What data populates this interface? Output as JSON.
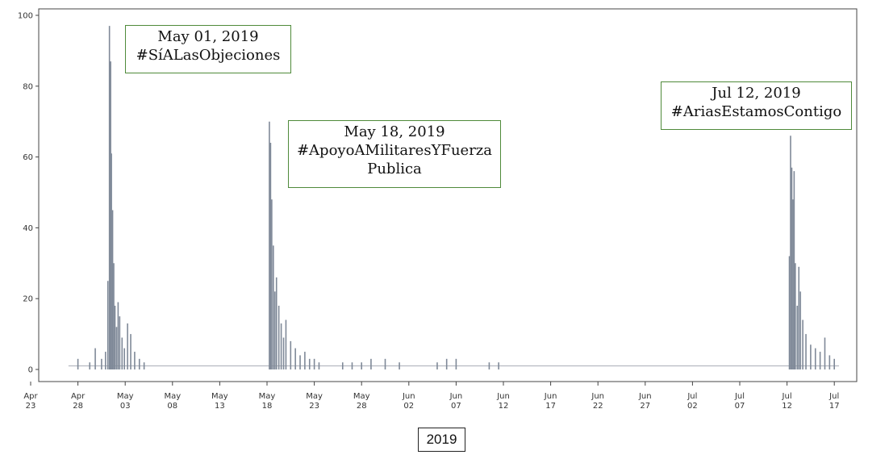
{
  "chart_data": {
    "type": "area",
    "title": "",
    "xlabel": "2019",
    "ylabel": "",
    "ylim": [
      0,
      100
    ],
    "y_ticks": [
      0,
      20,
      40,
      60,
      80,
      100
    ],
    "x_ticks": [
      {
        "month": "Apr",
        "day": "23"
      },
      {
        "month": "Apr",
        "day": "28"
      },
      {
        "month": "May",
        "day": "03"
      },
      {
        "month": "May",
        "day": "08"
      },
      {
        "month": "May",
        "day": "13"
      },
      {
        "month": "May",
        "day": "18"
      },
      {
        "month": "May",
        "day": "23"
      },
      {
        "month": "May",
        "day": "28"
      },
      {
        "month": "Jun",
        "day": "02"
      },
      {
        "month": "Jun",
        "day": "07"
      },
      {
        "month": "Jun",
        "day": "12"
      },
      {
        "month": "Jun",
        "day": "17"
      },
      {
        "month": "Jun",
        "day": "22"
      },
      {
        "month": "Jun",
        "day": "27"
      },
      {
        "month": "Jul",
        "day": "02"
      },
      {
        "month": "Jul",
        "day": "07"
      },
      {
        "month": "Jul",
        "day": "12"
      },
      {
        "month": "Jul",
        "day": "17"
      }
    ],
    "xlim": [
      "2019-04-23",
      "2019-07-19"
    ],
    "baseline": 1,
    "series": [
      {
        "color": "#7f8998",
        "points": [
          [
            "2019-04-28T00:00",
            3
          ],
          [
            "2019-04-29T06:00",
            2
          ],
          [
            "2019-04-29T20:00",
            6
          ],
          [
            "2019-04-30T12:00",
            3
          ],
          [
            "2019-04-30T22:00",
            5
          ],
          [
            "2019-05-01T04:00",
            25
          ],
          [
            "2019-05-01T08:00",
            97
          ],
          [
            "2019-05-01T11:00",
            87
          ],
          [
            "2019-05-01T13:00",
            61
          ],
          [
            "2019-05-01T16:00",
            45
          ],
          [
            "2019-05-01T19:00",
            30
          ],
          [
            "2019-05-01T22:00",
            18
          ],
          [
            "2019-05-02T02:00",
            12
          ],
          [
            "2019-05-02T06:00",
            19
          ],
          [
            "2019-05-02T10:00",
            15
          ],
          [
            "2019-05-02T16:00",
            9
          ],
          [
            "2019-05-02T22:00",
            6
          ],
          [
            "2019-05-03T06:00",
            13
          ],
          [
            "2019-05-03T14:00",
            10
          ],
          [
            "2019-05-04T00:00",
            5
          ],
          [
            "2019-05-04T12:00",
            3
          ],
          [
            "2019-05-05T00:00",
            2
          ],
          [
            "2019-05-18T06:00",
            70
          ],
          [
            "2019-05-18T09:00",
            64
          ],
          [
            "2019-05-18T12:00",
            48
          ],
          [
            "2019-05-18T16:00",
            35
          ],
          [
            "2019-05-18T20:00",
            22
          ],
          [
            "2019-05-19T00:00",
            26
          ],
          [
            "2019-05-19T06:00",
            18
          ],
          [
            "2019-05-19T12:00",
            13
          ],
          [
            "2019-05-19T18:00",
            9
          ],
          [
            "2019-05-20T00:00",
            14
          ],
          [
            "2019-05-20T12:00",
            8
          ],
          [
            "2019-05-21T00:00",
            6
          ],
          [
            "2019-05-21T12:00",
            4
          ],
          [
            "2019-05-22T00:00",
            5
          ],
          [
            "2019-05-22T12:00",
            3
          ],
          [
            "2019-05-23T00:00",
            3
          ],
          [
            "2019-05-23T12:00",
            2
          ],
          [
            "2019-05-26T00:00",
            2
          ],
          [
            "2019-05-27T00:00",
            2
          ],
          [
            "2019-05-28T00:00",
            2
          ],
          [
            "2019-05-29T00:00",
            3
          ],
          [
            "2019-05-30T12:00",
            3
          ],
          [
            "2019-06-01T00:00",
            2
          ],
          [
            "2019-06-05T00:00",
            2
          ],
          [
            "2019-06-06T00:00",
            3
          ],
          [
            "2019-06-07T00:00",
            3
          ],
          [
            "2019-06-10T12:00",
            2
          ],
          [
            "2019-06-11T12:00",
            2
          ],
          [
            "2019-07-12T06:00",
            32
          ],
          [
            "2019-07-12T09:00",
            66
          ],
          [
            "2019-07-12T12:00",
            57
          ],
          [
            "2019-07-12T15:00",
            48
          ],
          [
            "2019-07-12T18:00",
            56
          ],
          [
            "2019-07-12T21:00",
            30
          ],
          [
            "2019-07-13T02:00",
            18
          ],
          [
            "2019-07-13T06:00",
            29
          ],
          [
            "2019-07-13T10:00",
            22
          ],
          [
            "2019-07-13T16:00",
            14
          ],
          [
            "2019-07-14T00:00",
            10
          ],
          [
            "2019-07-14T12:00",
            7
          ],
          [
            "2019-07-15T00:00",
            6
          ],
          [
            "2019-07-15T12:00",
            5
          ],
          [
            "2019-07-16T00:00",
            9
          ],
          [
            "2019-07-16T12:00",
            4
          ],
          [
            "2019-07-17T00:00",
            3
          ]
        ]
      }
    ],
    "annotations": [
      {
        "lines": [
          "May 01, 2019",
          "#SíALasObjeciones"
        ]
      },
      {
        "lines": [
          "May 18, 2019",
          "#ApoyoAMilitaresYFuerza",
          "Publica"
        ]
      },
      {
        "lines": [
          "Jul 12, 2019",
          "#AriasEstamosContigo"
        ]
      }
    ],
    "grid": false,
    "legend": "none"
  }
}
